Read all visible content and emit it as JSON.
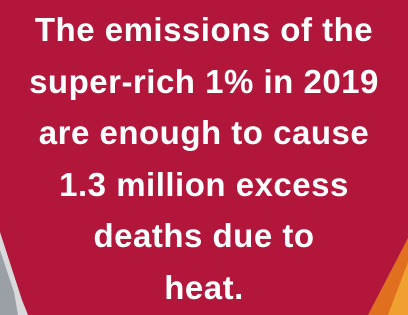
{
  "text": {
    "lines": [
      "The emissions of the",
      "super-rich 1% in 2019",
      "are enough to cause",
      "1.3 million excess",
      "deaths due to",
      "heat."
    ]
  }
}
